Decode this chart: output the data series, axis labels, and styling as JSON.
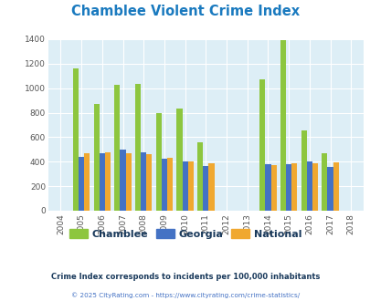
{
  "title": "Chamblee Violent Crime Index",
  "title_color": "#1a7abf",
  "years": [
    2004,
    2005,
    2006,
    2007,
    2008,
    2009,
    2010,
    2011,
    2012,
    2013,
    2014,
    2015,
    2016,
    2017,
    2018
  ],
  "chamblee": [
    0,
    1160,
    870,
    1025,
    1035,
    800,
    830,
    555,
    0,
    0,
    1070,
    1390,
    655,
    470,
    0
  ],
  "georgia": [
    0,
    440,
    470,
    495,
    478,
    422,
    403,
    365,
    0,
    0,
    378,
    382,
    400,
    355,
    0
  ],
  "national": [
    0,
    470,
    475,
    470,
    458,
    432,
    405,
    390,
    0,
    0,
    375,
    385,
    385,
    395,
    0
  ],
  "bar_width": 0.27,
  "chamblee_color": "#8dc63f",
  "georgia_color": "#4472c4",
  "national_color": "#f0a830",
  "bg_color": "#ddeef6",
  "ylim": [
    0,
    1400
  ],
  "yticks": [
    0,
    200,
    400,
    600,
    800,
    1000,
    1200,
    1400
  ],
  "grid_color": "#ffffff",
  "subtitle": "Crime Index corresponds to incidents per 100,000 inhabitants",
  "footer": "© 2025 CityRating.com - https://www.cityrating.com/crime-statistics/",
  "subtitle_color": "#1a3a5c",
  "footer_color": "#4472c4",
  "legend_labels": [
    "Chamblee",
    "Georgia",
    "National"
  ]
}
